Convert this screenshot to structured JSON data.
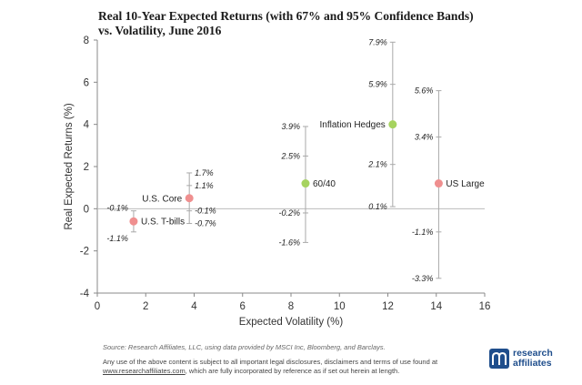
{
  "chart_data": {
    "type": "scatter",
    "title": "Real 10-Year Expected Returns (with 67% and 95% Confidence Bands) vs. Volatility, June 2016",
    "title_lines": [
      "Real 10-Year Expected Returns (with 67% and 95% Confidence Bands)",
      "vs. Volatility, June 2016"
    ],
    "xlabel": "Expected Volatility (%)",
    "ylabel": "Real Expected Returns (%)",
    "xlim": [
      0,
      16
    ],
    "ylim": [
      -4,
      8
    ],
    "xticks": [
      0,
      2,
      4,
      6,
      8,
      10,
      12,
      14,
      16
    ],
    "yticks": [
      -4,
      -2,
      0,
      2,
      4,
      6,
      8
    ],
    "grid": false,
    "points": [
      {
        "name": "U.S. T-bills",
        "x": 1.5,
        "y": -0.6,
        "color": "#ef8f8f",
        "label_side": "right",
        "band67": [
          -1.1,
          -0.1
        ],
        "band95": [
          -1.1,
          -0.1
        ],
        "band_labels": [
          "-0.1%",
          "-1.1%"
        ],
        "band_label_side": "left"
      },
      {
        "name": "U.S. Core",
        "x": 3.8,
        "y": 0.5,
        "color": "#ef8f8f",
        "label_side": "left",
        "band67": [
          -0.1,
          1.1
        ],
        "band95": [
          -0.7,
          1.7
        ],
        "band_labels": [
          "1.7%",
          "1.1%",
          "-0.1%",
          "-0.7%"
        ],
        "band_label_side": "right"
      },
      {
        "name": "60/40",
        "x": 8.6,
        "y": 1.2,
        "color": "#a6d35f",
        "label_side": "right",
        "band67": [
          -0.2,
          2.5
        ],
        "band95": [
          -1.6,
          3.9
        ],
        "band_labels": [
          "3.9%",
          "2.5%",
          "-0.2%",
          "-1.6%"
        ],
        "band_label_side": "left"
      },
      {
        "name": "Inflation Hedges",
        "x": 12.2,
        "y": 4.0,
        "color": "#a6d35f",
        "label_side": "left",
        "band67": [
          2.1,
          5.9
        ],
        "band95": [
          0.1,
          7.9
        ],
        "band_labels": [
          "7.9%",
          "5.9%",
          "2.1%",
          "0.1%"
        ],
        "band_label_side": "left"
      },
      {
        "name": "US Large",
        "x": 14.1,
        "y": 1.2,
        "color": "#ef8f8f",
        "label_side": "right",
        "band67": [
          -1.1,
          3.4
        ],
        "band95": [
          -3.3,
          5.6
        ],
        "band_labels": [
          "5.6%",
          "3.4%",
          "-1.1%",
          "-3.3%"
        ],
        "band_label_side": "left"
      }
    ]
  },
  "footer": {
    "source": "Source: Research Affiliates, LLC, using data provided by MSCI Inc, Bloomberg, and Barclays.",
    "disclaimer_before": "Any use of the above content is subject to all important legal disclosures, disclaimers and terms of use found at",
    "disclaimer_link": "www.researchaffiliates.com",
    "disclaimer_after": ", which are fully incorporated by reference as if set out herein at length."
  },
  "logo": {
    "line1": "research",
    "line2": "affiliates",
    "color": "#1f4e8c"
  }
}
